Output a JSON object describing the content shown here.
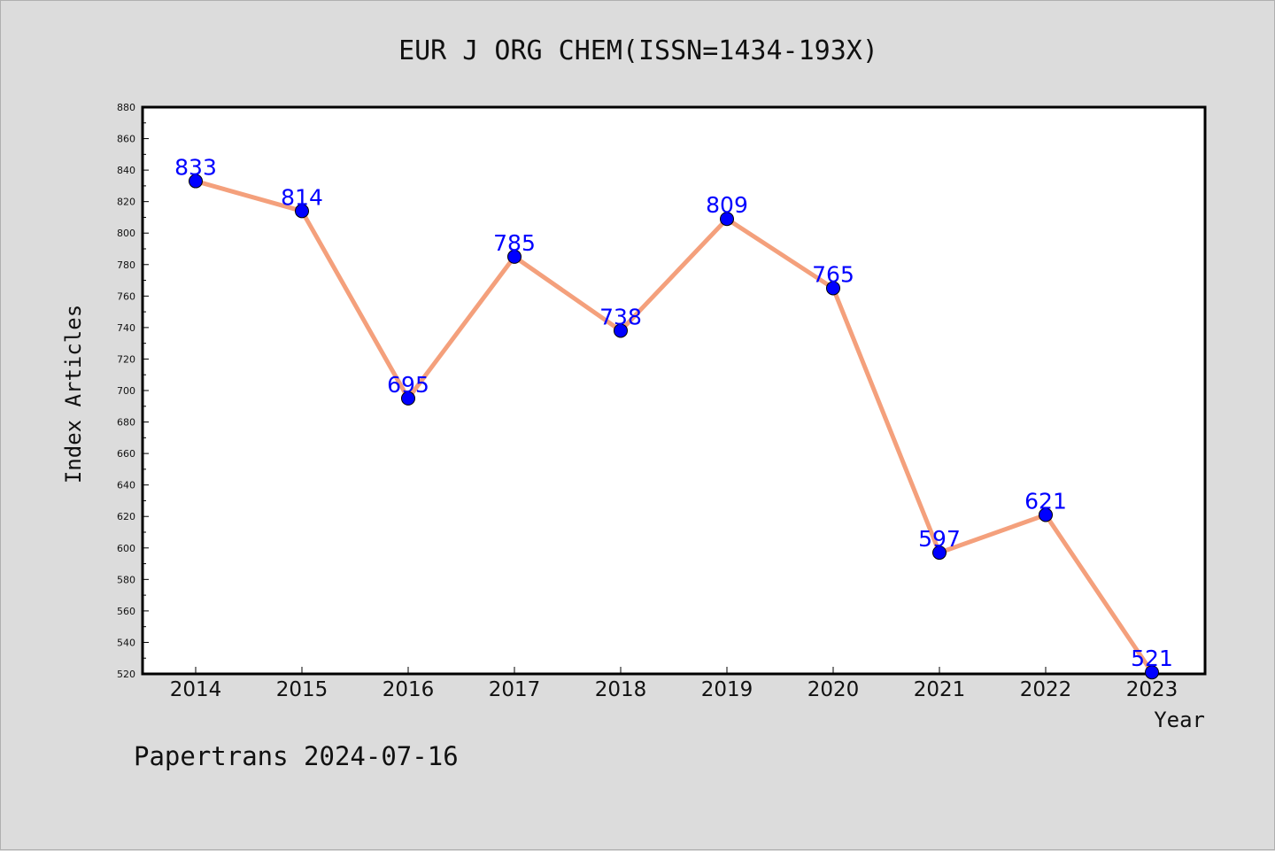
{
  "chart_data": {
    "type": "line",
    "title": "EUR J ORG CHEM(ISSN=1434-193X)",
    "xlabel": "Year",
    "ylabel": "Index Articles",
    "categories": [
      "2014",
      "2015",
      "2016",
      "2017",
      "2018",
      "2019",
      "2020",
      "2021",
      "2022",
      "2023"
    ],
    "series": [
      {
        "values": [
          833,
          814,
          695,
          785,
          738,
          809,
          765,
          597,
          621,
          521
        ]
      }
    ],
    "ylim": [
      520,
      880
    ],
    "yticks": [
      520,
      540,
      560,
      580,
      600,
      620,
      640,
      660,
      680,
      700,
      720,
      740,
      760,
      780,
      800,
      820,
      840,
      860,
      880
    ],
    "grid": false,
    "line_color": "#f4a07c",
    "marker_color": "#0000ff",
    "label_color": "#0000ff"
  },
  "footer": "Papertrans 2024-07-16"
}
